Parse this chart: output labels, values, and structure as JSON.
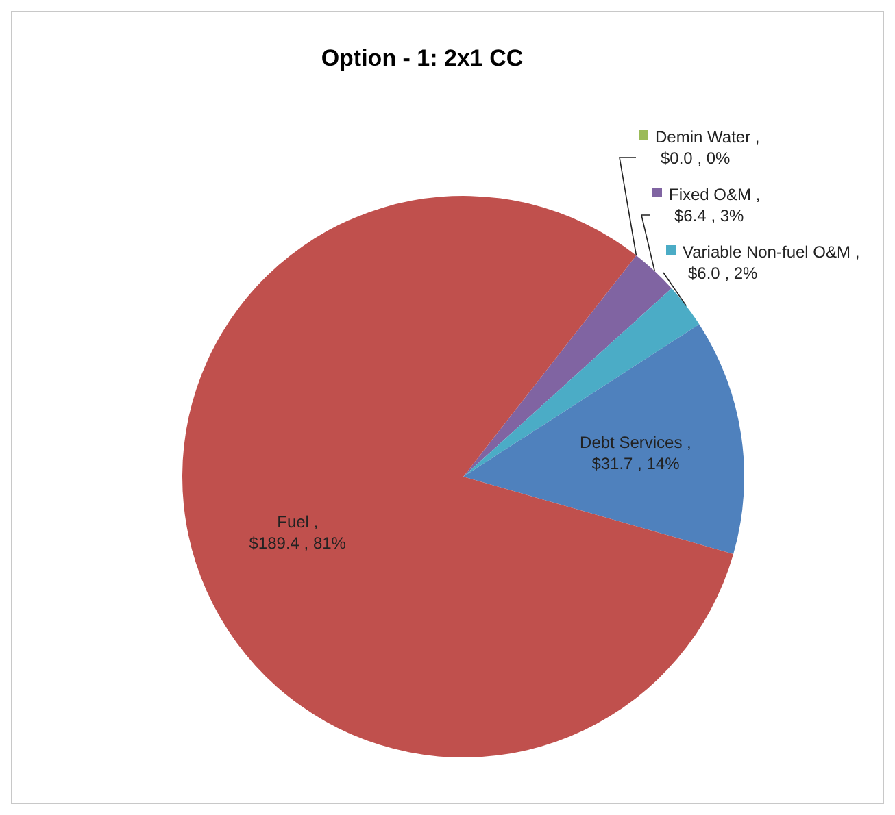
{
  "chart_data": {
    "type": "pie",
    "title": "Option - 1:  2x1 CC",
    "categories": [
      "Demin Water",
      "Fixed O&M",
      "Variable Non-fuel O&M",
      "Debt Services",
      "Fuel"
    ],
    "values": [
      0.0,
      6.4,
      6.0,
      31.7,
      189.4
    ],
    "value_labels": [
      ", $0.0 , 0%",
      ", $6.4 , 3%",
      ", $6.0 , 2%",
      ", $31.7 , 14%",
      ", $189.4 , 81%"
    ],
    "colors": [
      "#9bbb59",
      "#8064a2",
      "#4bacc6",
      "#4f81bd",
      "#c0504d"
    ],
    "legend": "top right"
  }
}
